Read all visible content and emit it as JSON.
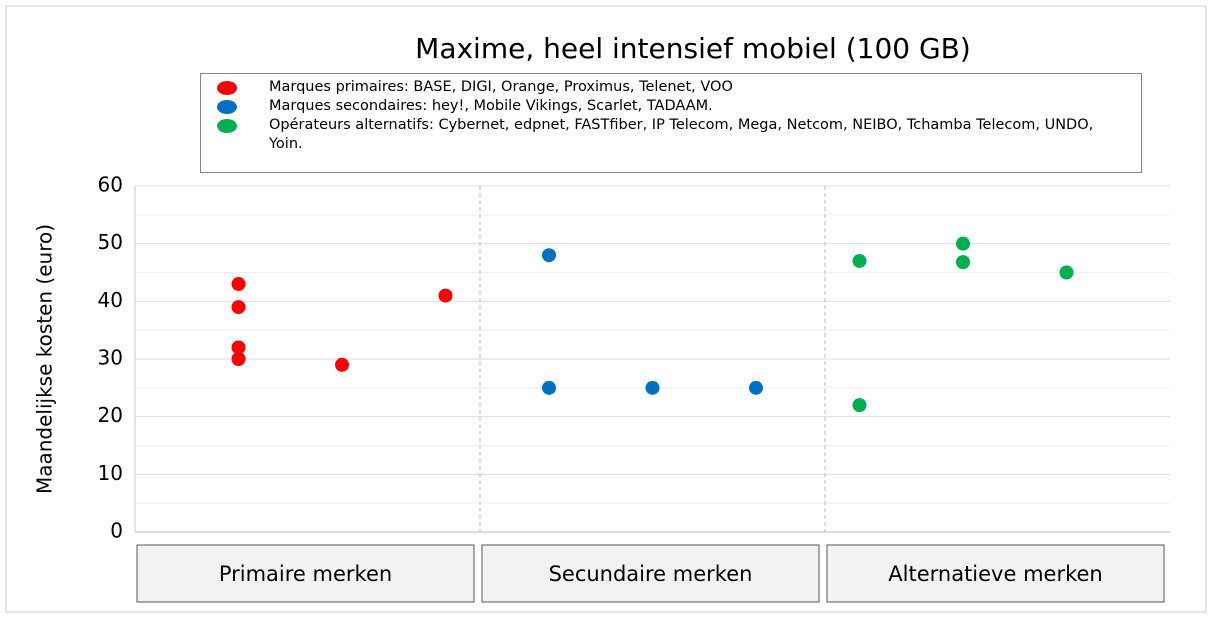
{
  "chart_data": {
    "type": "scatter",
    "title": "Maxime, heel intensief mobiel (100 GB)",
    "y_label": "Maandelijkse kosten (euro)",
    "categories": [
      "Primaire merken",
      "Secundaire merken",
      "Alternatieve merken"
    ],
    "xlim": [
      0,
      10
    ],
    "ylim": [
      0,
      60
    ],
    "yticks": [
      0,
      10,
      20,
      30,
      40,
      50,
      60
    ],
    "grid": true,
    "series": [
      {
        "name": "Marques primaires:  BASE, DIGI, Orange, Proximus, Telenet, VOO",
        "color": "#ff0000",
        "x": [
          1,
          1,
          1,
          1,
          2,
          3
        ],
        "values": [
          43,
          39,
          32,
          30,
          29,
          41
        ]
      },
      {
        "name": "Marques secondaires:  hey!, Mobile Vikings, Scarlet, TADAAM.",
        "color": "#0070c0",
        "x": [
          4,
          4,
          5,
          6
        ],
        "values": [
          48,
          25,
          25,
          25
        ]
      },
      {
        "name": "Opérateurs alternatifs: Cybernet, edpnet, FASTfiber, IP Telecom, Mega, Netcom, NEIBO, Tchamba Telecom, UNDO, Yoin.",
        "color": "#00b050",
        "x": [
          7,
          7,
          8,
          8,
          9
        ],
        "values": [
          47,
          22,
          50,
          46.8,
          45
        ]
      }
    ]
  }
}
